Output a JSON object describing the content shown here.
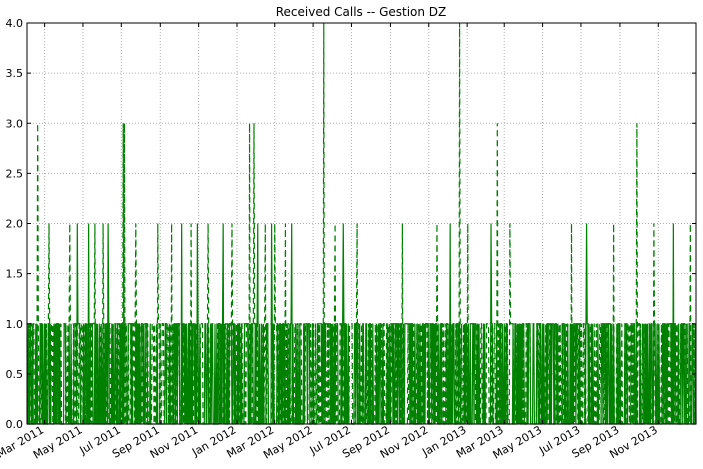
{
  "chart_data": {
    "type": "line",
    "title": "Received Calls -- Gestion DZ",
    "xlabel": "",
    "ylabel": "",
    "x_range": [
      "2011-02-01",
      "2013-12-31"
    ],
    "ylim": [
      0,
      4
    ],
    "y_ticks": [
      "0.0",
      "0.5",
      "1.0",
      "1.5",
      "2.0",
      "2.5",
      "3.0",
      "3.5",
      "4.0"
    ],
    "x_ticks": [
      {
        "date": "2011-03-01",
        "label": "Mar 2011"
      },
      {
        "date": "2011-05-01",
        "label": "May 2011"
      },
      {
        "date": "2011-07-01",
        "label": "Jul 2011"
      },
      {
        "date": "2011-09-01",
        "label": "Sep 2011"
      },
      {
        "date": "2011-11-01",
        "label": "Nov 2011"
      },
      {
        "date": "2012-01-01",
        "label": "Jan 2012"
      },
      {
        "date": "2012-03-01",
        "label": "Mar 2012"
      },
      {
        "date": "2012-05-01",
        "label": "May 2012"
      },
      {
        "date": "2012-07-01",
        "label": "Jul 2012"
      },
      {
        "date": "2012-09-01",
        "label": "Sep 2012"
      },
      {
        "date": "2012-11-01",
        "label": "Nov 2012"
      },
      {
        "date": "2013-01-01",
        "label": "Jan 2013"
      },
      {
        "date": "2013-03-01",
        "label": "Mar 2013"
      },
      {
        "date": "2013-05-01",
        "label": "May 2013"
      },
      {
        "date": "2013-07-01",
        "label": "Jul 2013"
      },
      {
        "date": "2013-09-01",
        "label": "Sep 2013"
      },
      {
        "date": "2013-11-01",
        "label": "Nov 2013"
      }
    ],
    "grid": true,
    "series": [
      {
        "color": "#008000",
        "style": "dashed",
        "spikes": [
          {
            "date": "2011-02-18",
            "value": 3
          },
          {
            "date": "2011-03-08",
            "value": 2
          },
          {
            "date": "2011-04-10",
            "value": 2
          },
          {
            "date": "2011-05-20",
            "value": 2
          },
          {
            "date": "2011-06-02",
            "value": 2
          },
          {
            "date": "2011-07-04",
            "value": 3
          },
          {
            "date": "2011-07-06",
            "value": 3
          },
          {
            "date": "2011-07-24",
            "value": 2
          },
          {
            "date": "2011-08-28",
            "value": 2
          },
          {
            "date": "2011-09-19",
            "value": 2
          },
          {
            "date": "2011-10-20",
            "value": 2
          },
          {
            "date": "2011-11-16",
            "value": 2
          },
          {
            "date": "2011-12-24",
            "value": 2
          },
          {
            "date": "2012-01-21",
            "value": 3
          },
          {
            "date": "2012-01-28",
            "value": 3
          },
          {
            "date": "2012-02-15",
            "value": 2
          },
          {
            "date": "2012-03-01",
            "value": 2
          },
          {
            "date": "2012-03-18",
            "value": 2
          },
          {
            "date": "2012-05-18",
            "value": 4
          },
          {
            "date": "2012-06-05",
            "value": 2
          },
          {
            "date": "2012-07-10",
            "value": 2
          },
          {
            "date": "2012-09-20",
            "value": 2
          },
          {
            "date": "2012-11-14",
            "value": 2
          },
          {
            "date": "2012-12-20",
            "value": 4
          },
          {
            "date": "2013-01-02",
            "value": 2
          },
          {
            "date": "2013-02-18",
            "value": 3
          },
          {
            "date": "2013-03-10",
            "value": 2
          },
          {
            "date": "2013-06-16",
            "value": 2
          },
          {
            "date": "2013-08-22",
            "value": 2
          },
          {
            "date": "2013-09-28",
            "value": 3
          },
          {
            "date": "2013-10-25",
            "value": 2
          },
          {
            "date": "2013-12-22",
            "value": 2
          }
        ]
      },
      {
        "color": "#008000",
        "style": "solid",
        "spikes": [
          {
            "date": "2011-04-22",
            "value": 2
          },
          {
            "date": "2011-05-10",
            "value": 2
          },
          {
            "date": "2011-06-10",
            "value": 2
          },
          {
            "date": "2011-10-05",
            "value": 2
          },
          {
            "date": "2011-10-30",
            "value": 2
          },
          {
            "date": "2011-12-10",
            "value": 2
          },
          {
            "date": "2012-02-03",
            "value": 2
          },
          {
            "date": "2012-02-25",
            "value": 2
          },
          {
            "date": "2012-03-28",
            "value": 2
          },
          {
            "date": "2012-06-18",
            "value": 2
          },
          {
            "date": "2012-12-05",
            "value": 2
          },
          {
            "date": "2013-02-08",
            "value": 2
          },
          {
            "date": "2013-07-10",
            "value": 2
          },
          {
            "date": "2013-11-25",
            "value": 2
          }
        ]
      }
    ]
  }
}
